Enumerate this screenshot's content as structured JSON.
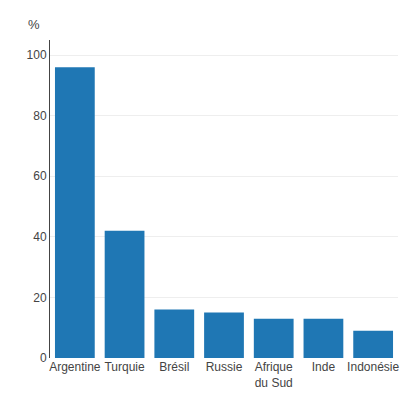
{
  "chart_data": {
    "type": "bar",
    "ylabel": "%",
    "categories": [
      "Argentine",
      "Turquie",
      "Brésil",
      "Russie",
      "Afrique\ndu Sud",
      "Inde",
      "Indonésie"
    ],
    "values": [
      96,
      42,
      16,
      15,
      13,
      13,
      9
    ],
    "ylim": [
      0,
      105
    ],
    "yticks": [
      0,
      20,
      40,
      60,
      80,
      100
    ],
    "grid": true
  }
}
